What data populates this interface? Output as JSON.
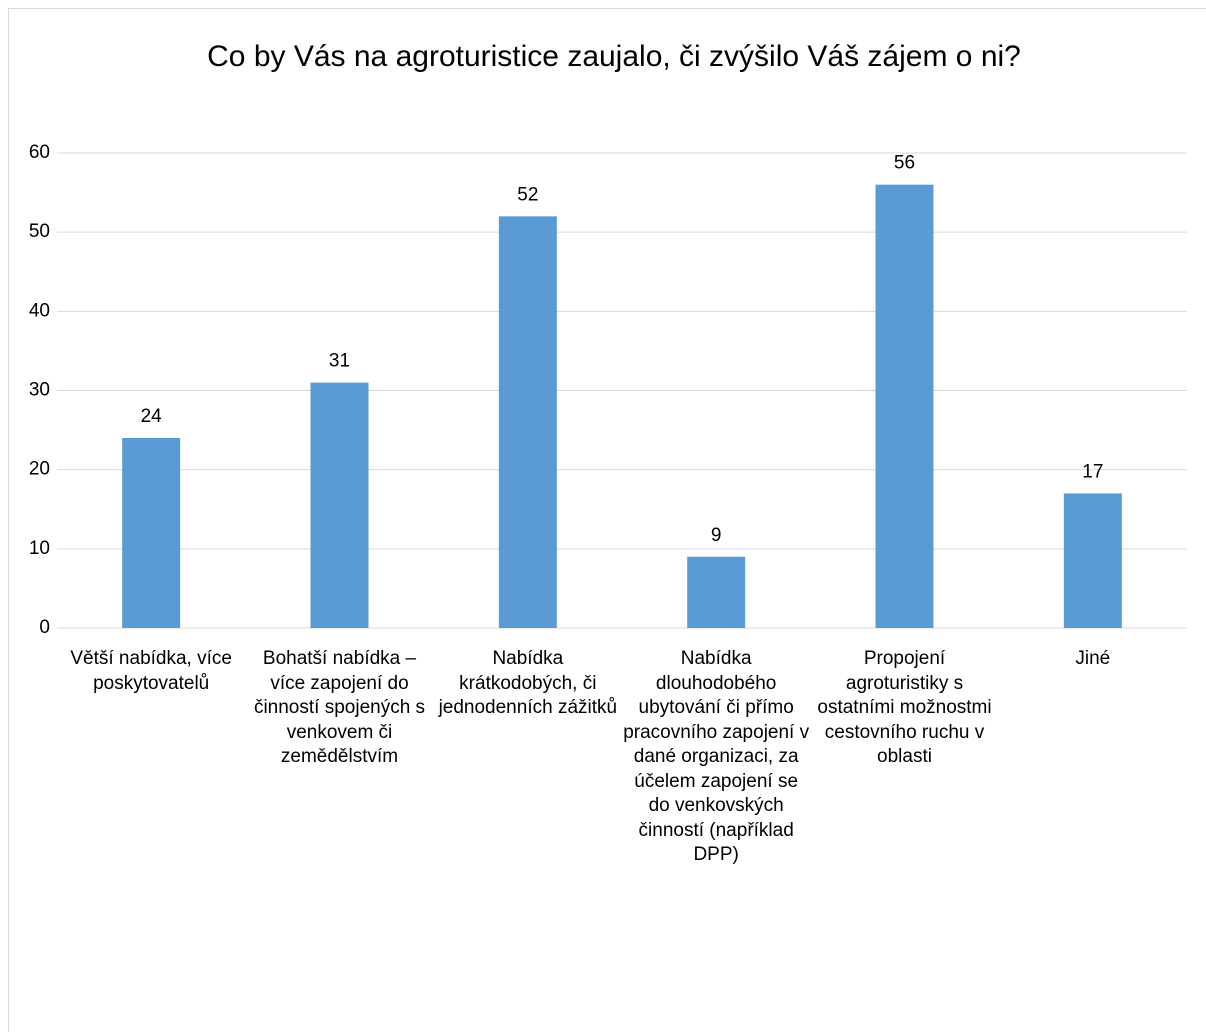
{
  "chart_data": {
    "type": "bar",
    "title": "Co by Vás na agroturistice zaujalo, či zvýšilo Váš zájem o ni?",
    "categories": [
      "Větší nabídka, více poskytovatelů",
      "Bohatší nabídka – více zapojení do činností spojených s venkovem či zemědělstvím",
      "Nabídka krátkodobých, či jednodenních zážitků",
      "Nabídka dlouhodobého ubytování či přímo pracovního zapojení v dané organizaci, za účelem zapojení se do venkovských činností (například DPP)",
      "Propojení agroturistiky s ostatními možnostmi cestovního ruchu v oblasti",
      "Jiné"
    ],
    "values": [
      24,
      31,
      52,
      9,
      56,
      17
    ],
    "color": "#5b9bd5",
    "ylim": [
      0,
      60
    ],
    "yticks": [
      0,
      10,
      20,
      30,
      40,
      50,
      60
    ],
    "grid": true
  }
}
